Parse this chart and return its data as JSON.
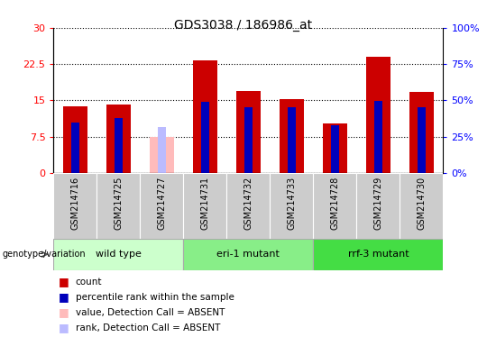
{
  "title": "GDS3038 / 186986_at",
  "samples": [
    "GSM214716",
    "GSM214725",
    "GSM214727",
    "GSM214731",
    "GSM214732",
    "GSM214733",
    "GSM214728",
    "GSM214729",
    "GSM214730"
  ],
  "count_values": [
    13.8,
    14.2,
    null,
    23.2,
    17.0,
    15.2,
    10.2,
    24.0,
    16.8
  ],
  "rank_values": [
    35.0,
    38.0,
    null,
    49.0,
    45.0,
    45.0,
    33.0,
    49.5,
    45.0
  ],
  "absent_count": [
    null,
    null,
    7.5,
    null,
    null,
    null,
    null,
    null,
    null
  ],
  "absent_rank": [
    null,
    null,
    31.5,
    null,
    null,
    null,
    null,
    null,
    null
  ],
  "groups": [
    {
      "label": "wild type",
      "indices": [
        0,
        1,
        2
      ],
      "color": "#ccffcc"
    },
    {
      "label": "eri-1 mutant",
      "indices": [
        3,
        4,
        5
      ],
      "color": "#88ee88"
    },
    {
      "label": "rrf-3 mutant",
      "indices": [
        6,
        7,
        8
      ],
      "color": "#44dd44"
    }
  ],
  "ylim_left": [
    0,
    30
  ],
  "ylim_right": [
    0,
    100
  ],
  "yticks_left": [
    0,
    7.5,
    15,
    22.5,
    30
  ],
  "yticks_right": [
    0,
    25,
    50,
    75,
    100
  ],
  "ytick_labels_left": [
    "0",
    "7.5",
    "15",
    "22.5",
    "30"
  ],
  "ytick_labels_right": [
    "0%",
    "25%",
    "50%",
    "75%",
    "100%"
  ],
  "count_color": "#cc0000",
  "rank_color": "#0000bb",
  "absent_count_color": "#ffbbbb",
  "absent_rank_color": "#bbbbff",
  "sample_box_color": "#cccccc",
  "legend_items": [
    {
      "color": "#cc0000",
      "label": "count"
    },
    {
      "color": "#0000bb",
      "label": "percentile rank within the sample"
    },
    {
      "color": "#ffbbbb",
      "label": "value, Detection Call = ABSENT"
    },
    {
      "color": "#bbbbff",
      "label": "rank, Detection Call = ABSENT"
    }
  ]
}
